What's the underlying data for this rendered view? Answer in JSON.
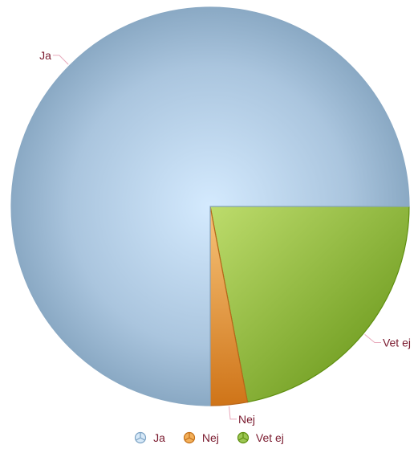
{
  "chart_data": {
    "type": "pie",
    "title": "",
    "categories": [
      "Ja",
      "Nej",
      "Vet ej"
    ],
    "values": [
      75,
      3,
      22
    ],
    "unit": "%",
    "colors": [
      "#a8c3dc",
      "#e3902a",
      "#85b040"
    ],
    "legend": "bottom"
  }
}
